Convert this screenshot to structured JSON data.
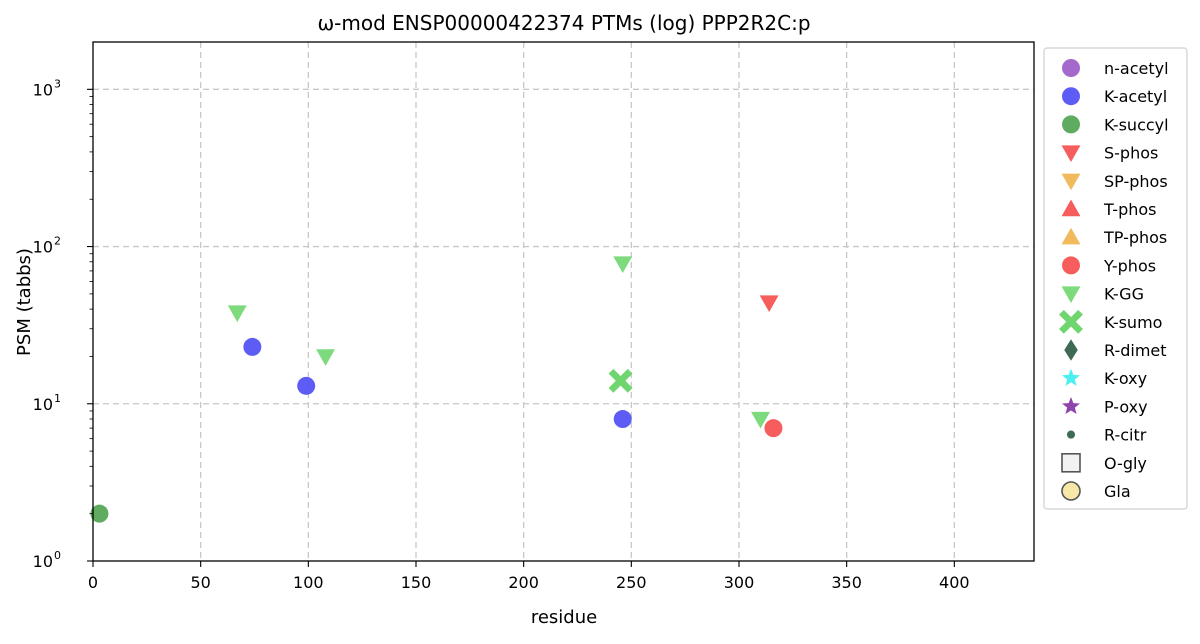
{
  "chart_data": {
    "type": "scatter",
    "title": "ω-mod ENSP00000422374 PTMs (log) PPP2R2C:p",
    "xlabel": "residue",
    "ylabel": "PSM (tabbs)",
    "xlim": [
      0,
      437
    ],
    "ylim": [
      1,
      2000
    ],
    "yscale": "log",
    "grid": true,
    "legend_position": "outside-right",
    "x_ticks": [
      "0",
      "50",
      "100",
      "150",
      "200",
      "250",
      "300",
      "350",
      "400"
    ],
    "x_tick_values": [
      0,
      50,
      100,
      150,
      200,
      250,
      300,
      350,
      400
    ],
    "y_tick_values": [
      1,
      10,
      100,
      1000
    ],
    "y_tick_base": "10",
    "y_tick_exponents": [
      "0",
      "1",
      "2",
      "3"
    ],
    "series": [
      {
        "name": "n-acetyl",
        "marker": "circle",
        "color": "#9b59c6",
        "points": []
      },
      {
        "name": "K-acetyl",
        "marker": "circle",
        "color": "#4b4bf5",
        "points": [
          {
            "x": 74,
            "y": 23
          },
          {
            "x": 99,
            "y": 13
          },
          {
            "x": 246,
            "y": 8
          }
        ]
      },
      {
        "name": "K-succyl",
        "marker": "circle",
        "color": "#4ea24e",
        "points": [
          {
            "x": 3,
            "y": 2
          }
        ]
      },
      {
        "name": "S-phos",
        "marker": "triangle-down",
        "color": "#f54b4b",
        "points": [
          {
            "x": 314,
            "y": 44
          }
        ]
      },
      {
        "name": "SP-phos",
        "marker": "triangle-down",
        "color": "#f0b44b",
        "points": []
      },
      {
        "name": "T-phos",
        "marker": "triangle-up",
        "color": "#f54b4b",
        "points": []
      },
      {
        "name": "TP-phos",
        "marker": "triangle-up",
        "color": "#f0b44b",
        "points": []
      },
      {
        "name": "Y-phos",
        "marker": "circle",
        "color": "#f54b4b",
        "points": [
          {
            "x": 316,
            "y": 7
          }
        ]
      },
      {
        "name": "K-GG",
        "marker": "triangle-down",
        "color": "#6fd66f",
        "points": [
          {
            "x": 67,
            "y": 38
          },
          {
            "x": 108,
            "y": 20
          },
          {
            "x": 246,
            "y": 78
          },
          {
            "x": 310,
            "y": 8
          }
        ]
      },
      {
        "name": "K-sumo",
        "marker": "x",
        "color": "#6fd66f",
        "points": [
          {
            "x": 245,
            "y": 14
          }
        ]
      },
      {
        "name": "R-dimet",
        "marker": "diamond",
        "color": "#3f6b55",
        "points": []
      },
      {
        "name": "K-oxy",
        "marker": "star",
        "color": "#4bf0f0",
        "points": []
      },
      {
        "name": "P-oxy",
        "marker": "star",
        "color": "#8e44ad",
        "points": []
      },
      {
        "name": "R-citr",
        "marker": "small-circle",
        "color": "#3f6b55",
        "points": []
      },
      {
        "name": "O-gly",
        "marker": "square-open",
        "color": "#f2f2f2",
        "points": []
      },
      {
        "name": "Gla",
        "marker": "circle-open",
        "color": "#f7e8a8",
        "points": []
      }
    ]
  }
}
